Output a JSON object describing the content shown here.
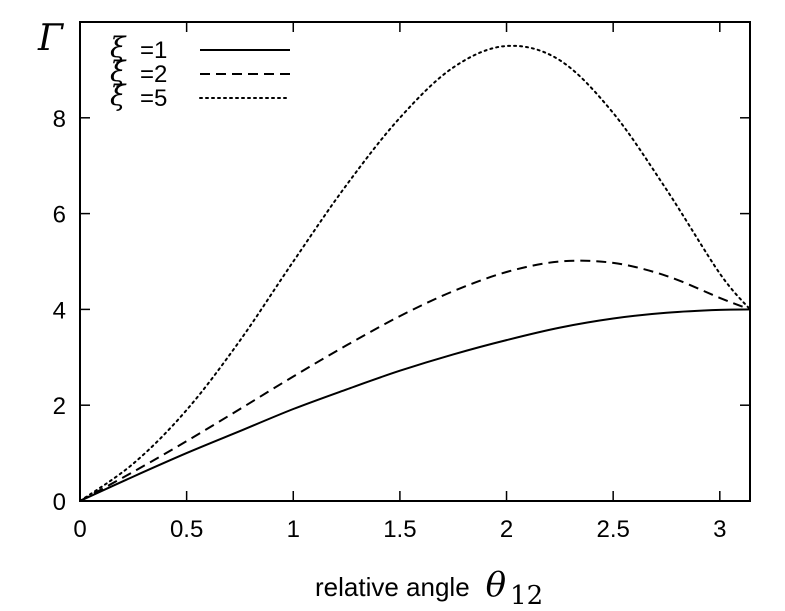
{
  "chart_data": {
    "type": "line",
    "title": "",
    "xlabel": "relative angle",
    "xlabel_symbol": "θ",
    "xlabel_subscript": "12",
    "ylabel": "Γ",
    "xlim": [
      0,
      3.1416
    ],
    "ylim": [
      0,
      10
    ],
    "xticks": [
      0,
      0.5,
      1,
      1.5,
      2,
      2.5,
      3
    ],
    "xtick_labels": [
      "0",
      "0.5",
      "1",
      "1.5",
      "2",
      "2.5",
      "3"
    ],
    "yticks": [
      0,
      2,
      4,
      6,
      8
    ],
    "ytick_labels": [
      "0",
      "2",
      "4",
      "6",
      "8"
    ],
    "grid": false,
    "legend_position": "top-left",
    "series": [
      {
        "name": "=1",
        "symbol": "ξ",
        "style": "solid",
        "x": [
          0,
          0.25,
          0.5,
          0.75,
          1.0,
          1.25,
          1.5,
          1.75,
          2.0,
          2.25,
          2.5,
          2.75,
          3.0,
          3.1416
        ],
        "y": [
          0,
          0.51,
          1.0,
          1.46,
          1.92,
          2.33,
          2.72,
          3.06,
          3.36,
          3.62,
          3.81,
          3.93,
          3.99,
          4.0
        ]
      },
      {
        "name": "=2",
        "symbol": "ξ",
        "style": "dashed",
        "x": [
          0,
          0.25,
          0.5,
          0.75,
          1.0,
          1.25,
          1.5,
          1.75,
          2.0,
          2.25,
          2.5,
          2.75,
          3.0,
          3.1416
        ],
        "y": [
          0,
          0.61,
          1.25,
          1.92,
          2.6,
          3.25,
          3.86,
          4.38,
          4.78,
          5.0,
          4.97,
          4.7,
          4.24,
          4.0
        ]
      },
      {
        "name": "=5",
        "symbol": "ξ",
        "style": "dotted",
        "x": [
          0,
          0.25,
          0.5,
          0.75,
          1.0,
          1.25,
          1.5,
          1.75,
          2.0,
          2.25,
          2.5,
          2.75,
          3.0,
          3.1416
        ],
        "y": [
          0,
          0.78,
          1.9,
          3.35,
          5.0,
          6.6,
          8.0,
          9.05,
          9.5,
          9.2,
          8.1,
          6.5,
          4.75,
          4.0
        ]
      }
    ]
  }
}
